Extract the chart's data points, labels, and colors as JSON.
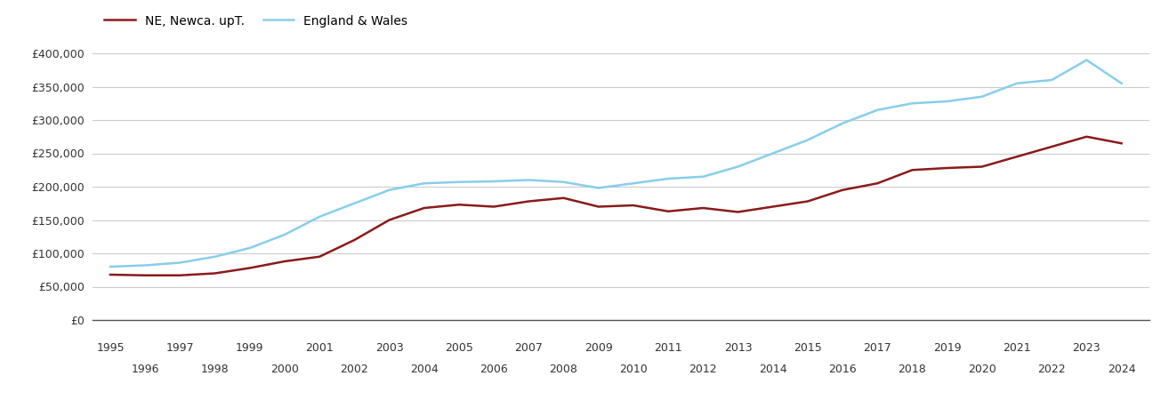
{
  "legend_labels": [
    "NE, Newca. upT.",
    "England & Wales"
  ],
  "line_colors": [
    "#8b1a1a",
    "#87CEEB"
  ],
  "years": [
    1995,
    1996,
    1997,
    1998,
    1999,
    2000,
    2001,
    2002,
    2003,
    2004,
    2005,
    2006,
    2007,
    2008,
    2009,
    2010,
    2011,
    2012,
    2013,
    2014,
    2015,
    2016,
    2017,
    2018,
    2019,
    2020,
    2021,
    2022,
    2023,
    2024
  ],
  "ne_values": [
    68000,
    67000,
    67000,
    70000,
    78000,
    88000,
    95000,
    120000,
    150000,
    168000,
    173000,
    170000,
    178000,
    183000,
    170000,
    172000,
    163000,
    168000,
    162000,
    170000,
    178000,
    195000,
    205000,
    225000,
    228000,
    230000,
    245000,
    260000,
    275000,
    265000
  ],
  "ew_values": [
    80000,
    82000,
    86000,
    95000,
    108000,
    128000,
    155000,
    175000,
    195000,
    205000,
    207000,
    208000,
    210000,
    207000,
    198000,
    205000,
    212000,
    215000,
    230000,
    250000,
    270000,
    295000,
    315000,
    325000,
    328000,
    335000,
    355000,
    360000,
    390000,
    355000
  ],
  "ylim": [
    0,
    420000
  ],
  "yticks": [
    0,
    50000,
    100000,
    150000,
    200000,
    250000,
    300000,
    350000,
    400000
  ],
  "background_color": "#ffffff",
  "grid_color": "#cccccc",
  "line_width": 1.8,
  "xlim_left": 1994.5,
  "xlim_right": 2024.8
}
